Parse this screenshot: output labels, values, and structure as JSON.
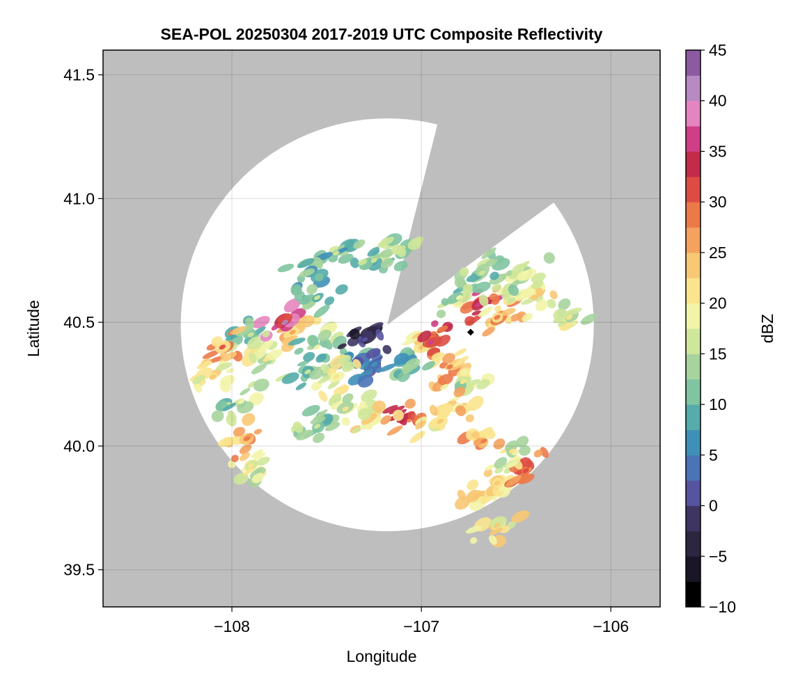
{
  "chart_data": {
    "type": "heatmap",
    "title": "SEA-POL 20250304 2017-2019 UTC Composite Reflectivity",
    "xlabel": "Longitude",
    "ylabel": "Latitude",
    "xlim": [
      -108.68,
      -105.74
    ],
    "ylim": [
      39.35,
      41.6
    ],
    "x_ticks": [
      -108,
      -107,
      -106
    ],
    "x_tick_labels": [
      "−108",
      "−107",
      "−106"
    ],
    "y_ticks": [
      39.5,
      40.0,
      40.5,
      41.0,
      41.5
    ],
    "y_tick_labels": [
      "39.5",
      "40.0",
      "40.5",
      "41.0",
      "41.5"
    ],
    "grid": true,
    "background_color": "#bebebe",
    "radar": {
      "center": [
        -107.18,
        40.49
      ],
      "max_range_deg": 1.09,
      "blocked_sector_lon_lat": [
        [
          -107.18,
          40.49
        ],
        [
          -106.84,
          41.53
        ],
        [
          -106.06,
          41.12
        ]
      ]
    },
    "site_marker": [
      -106.74,
      40.46
    ],
    "colorbar": {
      "label": "dBZ",
      "min": -10,
      "max": 45,
      "step": 2.5,
      "ticks": [
        -10,
        -5,
        0,
        5,
        10,
        15,
        20,
        25,
        30,
        35,
        40,
        45
      ],
      "tick_labels": [
        "−10",
        "−5",
        "0",
        "5",
        "10",
        "15",
        "20",
        "25",
        "30",
        "35",
        "40",
        "45"
      ],
      "colormap": "spectral_extended",
      "colors": [
        "#000000",
        "#1a1626",
        "#2d2640",
        "#3e3563",
        "#5653a0",
        "#4a74b7",
        "#3f90b8",
        "#55acaa",
        "#80c4a1",
        "#a6d49c",
        "#cfe79a",
        "#f2f4a8",
        "#fbe48e",
        "#f8c874",
        "#f4a25d",
        "#ec7a49",
        "#dd4c44",
        "#c22b4a",
        "#cf3f86",
        "#e585bf",
        "#b88ac3",
        "#8d5aa2",
        "#4f1a5f"
      ]
    },
    "echo_regions": [
      {
        "lon": -107.68,
        "lat": 40.46,
        "dbz": 22
      },
      {
        "lon": -107.55,
        "lat": 40.4,
        "dbz": 14
      },
      {
        "lon": -107.4,
        "lat": 40.36,
        "dbz": 8
      },
      {
        "lon": -107.25,
        "lat": 40.33,
        "dbz": 2
      },
      {
        "lon": -107.72,
        "lat": 40.5,
        "dbz": 36
      },
      {
        "lon": -107.45,
        "lat": 40.28,
        "dbz": 18
      },
      {
        "lon": -107.82,
        "lat": 40.35,
        "dbz": 17
      },
      {
        "lon": -107.9,
        "lat": 40.45,
        "dbz": 13
      },
      {
        "lon": -107.3,
        "lat": 40.43,
        "dbz": -2
      },
      {
        "lon": -107.6,
        "lat": 40.3,
        "dbz": 12
      },
      {
        "lon": -107.0,
        "lat": 40.4,
        "dbz": 20
      },
      {
        "lon": -106.95,
        "lat": 40.42,
        "dbz": 32
      },
      {
        "lon": -106.85,
        "lat": 40.32,
        "dbz": 25
      },
      {
        "lon": -106.78,
        "lat": 40.26,
        "dbz": 16
      },
      {
        "lon": -107.08,
        "lat": 40.3,
        "dbz": 10
      },
      {
        "lon": -106.7,
        "lat": 40.57,
        "dbz": 32
      },
      {
        "lon": -106.6,
        "lat": 40.52,
        "dbz": 24
      },
      {
        "lon": -106.55,
        "lat": 40.63,
        "dbz": 18
      },
      {
        "lon": -106.8,
        "lat": 40.6,
        "dbz": 14
      },
      {
        "lon": -106.68,
        "lat": 40.7,
        "dbz": 13
      },
      {
        "lon": -107.1,
        "lat": 40.1,
        "dbz": 30
      },
      {
        "lon": -107.25,
        "lat": 40.12,
        "dbz": 20
      },
      {
        "lon": -107.4,
        "lat": 40.15,
        "dbz": 17
      },
      {
        "lon": -106.9,
        "lat": 40.1,
        "dbz": 19
      },
      {
        "lon": -106.8,
        "lat": 40.15,
        "dbz": 22
      },
      {
        "lon": -107.25,
        "lat": 40.75,
        "dbz": 12
      },
      {
        "lon": -107.45,
        "lat": 40.78,
        "dbz": 11
      },
      {
        "lon": -107.1,
        "lat": 40.8,
        "dbz": 13
      },
      {
        "lon": -107.6,
        "lat": 40.7,
        "dbz": 10
      },
      {
        "lon": -107.55,
        "lat": 40.6,
        "dbz": 12
      },
      {
        "lon": -106.7,
        "lat": 39.8,
        "dbz": 22
      },
      {
        "lon": -106.6,
        "lat": 39.85,
        "dbz": 20
      },
      {
        "lon": -106.45,
        "lat": 39.9,
        "dbz": 28
      },
      {
        "lon": -106.52,
        "lat": 39.98,
        "dbz": 17
      },
      {
        "lon": -106.6,
        "lat": 39.68,
        "dbz": 20
      },
      {
        "lon": -106.67,
        "lat": 40.02,
        "dbz": 24
      },
      {
        "lon": -106.22,
        "lat": 40.52,
        "dbz": 16
      },
      {
        "lon": -107.9,
        "lat": 39.92,
        "dbz": 17
      },
      {
        "lon": -108.05,
        "lat": 40.4,
        "dbz": 26
      },
      {
        "lon": -107.55,
        "lat": 40.08,
        "dbz": 12
      },
      {
        "lon": -107.95,
        "lat": 40.18,
        "dbz": 14
      },
      {
        "lon": -108.1,
        "lat": 40.28,
        "dbz": 20
      },
      {
        "lon": -107.92,
        "lat": 40.03,
        "dbz": 25
      },
      {
        "lon": -106.4,
        "lat": 40.6,
        "dbz": 20
      },
      {
        "lon": -106.45,
        "lat": 40.7,
        "dbz": 15
      }
    ]
  }
}
